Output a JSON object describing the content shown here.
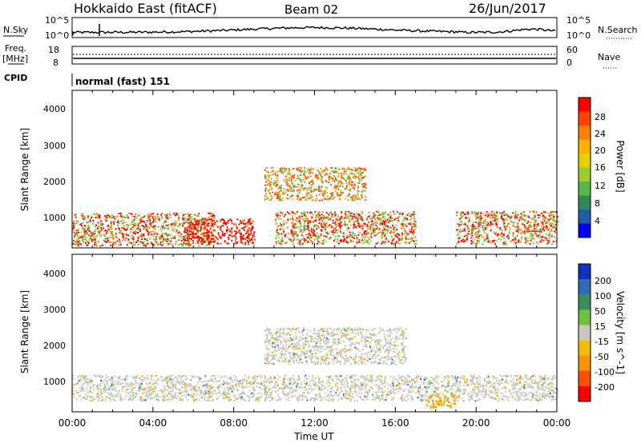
{
  "header": {
    "title": "Hokkaido East (fitACF)",
    "beam": "Beam 02",
    "date": "26/Jun/2017"
  },
  "top_panels": {
    "nsky_label": "N.Sky",
    "nsky_left_ticks": [
      "10^5",
      "10^0"
    ],
    "nsearch_label": "N.Search",
    "nsearch_right_ticks": [
      "10^5",
      "10^0"
    ],
    "freq_label": "Freq.",
    "freq_unit": "[MHz]",
    "freq_ticks": [
      "18",
      "8"
    ],
    "nave_label": "Nave",
    "nave_ticks": [
      "60",
      "0"
    ],
    "cpid_label": "CPID",
    "cpid_text": "normal (fast) 151"
  },
  "power_colorbar": {
    "label": "Power [dB]",
    "ticks": [
      "28",
      "24",
      "20",
      "16",
      "12",
      "8",
      "4"
    ],
    "colors": [
      "#ff0000",
      "#ff4400",
      "#ff8000",
      "#ffb000",
      "#e8d000",
      "#9acd32",
      "#55b84a",
      "#2e8b57",
      "#1f5fa8",
      "#0000ff"
    ]
  },
  "velocity_colorbar": {
    "label": "Velocity [m s^-1]",
    "ticks": [
      "200",
      "100",
      "50",
      "15",
      "-15",
      "-50",
      "-100",
      "-200"
    ],
    "colors": [
      "#1030c0",
      "#2e6db4",
      "#3a8f5a",
      "#70c040",
      "#c8c8c0",
      "#f0c000",
      "#ff9000",
      "#ff5000",
      "#ff0000"
    ]
  },
  "chart_data": [
    {
      "type": "heatmap",
      "panel": "power",
      "ylabel": "Slant Range [km]",
      "ylim": [
        180,
        4500
      ],
      "yticks": [
        "4000",
        "3000",
        "2000",
        "1000"
      ],
      "xlim_hours": [
        0,
        24
      ],
      "xticks": [
        "00:00",
        "04:00",
        "08:00",
        "12:00",
        "16:00",
        "20:00",
        "00:00"
      ],
      "colorbar": "Power [dB]",
      "scatter_regions": [
        {
          "t0": 0.0,
          "t1": 7.0,
          "r0": 250,
          "r1": 1150,
          "level": "high"
        },
        {
          "t0": 5.5,
          "t1": 9.0,
          "r0": 300,
          "r1": 1000,
          "level": "max"
        },
        {
          "t0": 9.5,
          "t1": 14.5,
          "r0": 1500,
          "r1": 2400,
          "level": "medium"
        },
        {
          "t0": 10.0,
          "t1": 17.0,
          "r0": 300,
          "r1": 1200,
          "level": "high"
        },
        {
          "t0": 19.0,
          "t1": 24.0,
          "r0": 300,
          "r1": 1200,
          "level": "high"
        }
      ]
    },
    {
      "type": "heatmap",
      "panel": "velocity",
      "ylabel": "Slant Range [km]",
      "ylim": [
        180,
        4500
      ],
      "yticks": [
        "4000",
        "3000",
        "2000",
        "1000"
      ],
      "xlim_hours": [
        0,
        24
      ],
      "xticks": [
        "00:00",
        "04:00",
        "08:00",
        "12:00",
        "16:00",
        "20:00",
        "00:00"
      ],
      "xlabel": "Time UT",
      "colorbar": "Velocity [m s^-1]",
      "scatter_regions": [
        {
          "t0": 0.0,
          "t1": 24.0,
          "r0": 500,
          "r1": 1200,
          "level": "ground"
        },
        {
          "t0": 9.5,
          "t1": 16.5,
          "r0": 1500,
          "r1": 2500,
          "level": "ground"
        },
        {
          "t0": 17.5,
          "t1": 19.0,
          "r0": 300,
          "r1": 700,
          "level": "negative"
        }
      ]
    }
  ]
}
